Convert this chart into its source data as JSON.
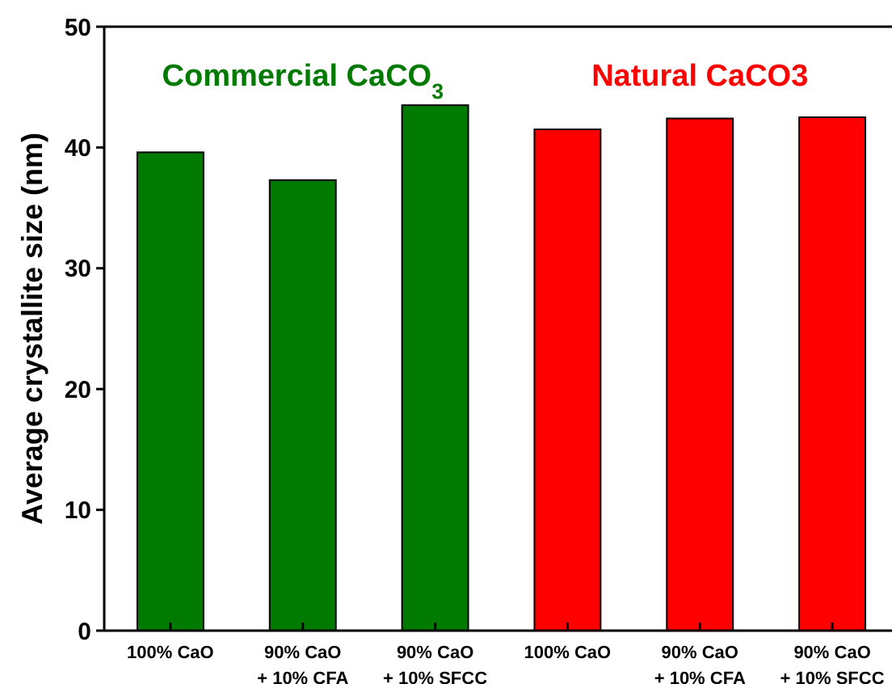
{
  "chart_data": {
    "type": "bar",
    "ylabel": "Average crystallite size (nm)",
    "categories": [
      "100% CaO",
      "90% CaO\n+ 10% CFA",
      "90% CaO\n+ 10% SFCC",
      "100% CaO",
      "90% CaO\n+ 10% CFA",
      "90% CaO\n+ 10% SFCC"
    ],
    "values": [
      39.6,
      37.3,
      43.5,
      41.5,
      42.4,
      42.5
    ],
    "colors": [
      "#007a00",
      "#007a00",
      "#007a00",
      "#ff0000",
      "#ff0000",
      "#ff0000"
    ],
    "ylim": [
      0,
      50
    ],
    "yticks": [
      0,
      10,
      20,
      30,
      40,
      50
    ],
    "annotations": [
      "Commercial CaCO$_{3}$",
      "Natural CaCO3"
    ]
  }
}
